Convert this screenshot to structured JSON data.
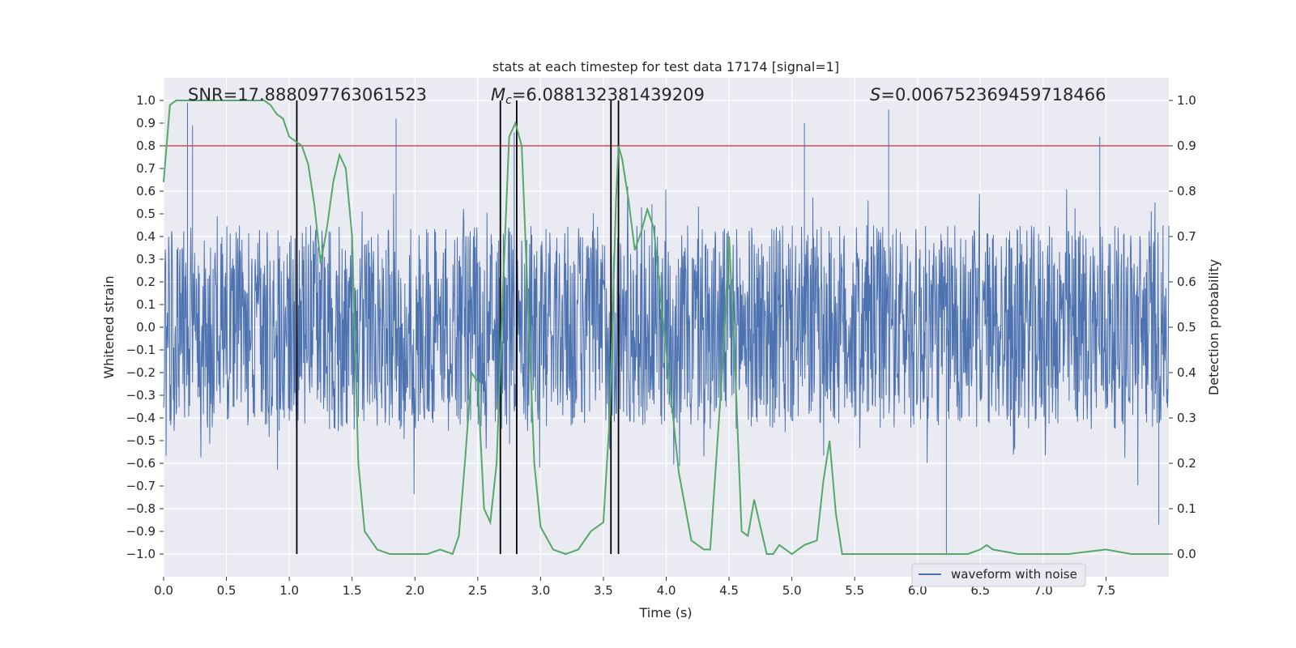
{
  "chart_data": {
    "type": "line",
    "title": "stats at each timestep for test data 17174 [signal=1]",
    "xlabel": "Time (s)",
    "ylabel_left": "Whitened strain",
    "ylabel_right": "Detection probability",
    "xlim": [
      0.0,
      8.0
    ],
    "ylim_left": [
      -1.1,
      1.1
    ],
    "ylim_right": [
      -0.05,
      1.05
    ],
    "x_ticks": [
      "0.0",
      "0.5",
      "1.0",
      "1.5",
      "2.0",
      "2.5",
      "3.0",
      "3.5",
      "4.0",
      "4.5",
      "5.0",
      "5.5",
      "6.0",
      "6.5",
      "7.0",
      "7.5"
    ],
    "y_left_ticks": [
      "1.0",
      "0.9",
      "0.8",
      "0.7",
      "0.6",
      "0.5",
      "0.4",
      "0.3",
      "0.2",
      "0.1",
      "0.0",
      "−0.1",
      "−0.2",
      "−0.3",
      "−0.4",
      "−0.5",
      "−0.6",
      "−0.7",
      "−0.8",
      "−0.9",
      "−1.0"
    ],
    "y_right_ticks": [
      "1.0",
      "0.9",
      "0.8",
      "0.7",
      "0.6",
      "0.5",
      "0.4",
      "0.3",
      "0.2",
      "0.1",
      "0.0"
    ],
    "grid": true,
    "annotations": {
      "snr": "SNR=17.888097763061523",
      "mc_symbol": "M",
      "mc_sub": "c",
      "mc_value": "=6.088132381439209",
      "s_symbol": "S",
      "s_value": "=0.006752369459718466"
    },
    "threshold_prob": 0.9,
    "vertical_lines_time": [
      1.06,
      2.68,
      2.81,
      3.56,
      3.62
    ],
    "series": [
      {
        "name": "waveform with noise",
        "axis": "left",
        "style": "noise-waveform",
        "envelope_typical": 0.45,
        "envelope_max": 1.0,
        "peak_times": [
          0.19,
          0.23,
          1.85,
          2.79,
          3.62,
          5.1,
          5.77,
          6.23,
          7.45,
          7.92
        ],
        "peak_values": [
          0.99,
          0.89,
          0.92,
          0.86,
          0.85,
          0.9,
          0.96,
          -1.0,
          0.84,
          -0.87
        ]
      },
      {
        "name": "detection probability",
        "axis": "right",
        "x": [
          0.0,
          0.05,
          0.1,
          0.15,
          0.2,
          0.3,
          0.4,
          0.5,
          0.6,
          0.7,
          0.8,
          0.85,
          0.9,
          0.95,
          1.0,
          1.1,
          1.15,
          1.2,
          1.25,
          1.3,
          1.35,
          1.4,
          1.45,
          1.5,
          1.55,
          1.6,
          1.7,
          1.8,
          1.9,
          2.0,
          2.1,
          2.2,
          2.3,
          2.35,
          2.4,
          2.45,
          2.5,
          2.55,
          2.6,
          2.65,
          2.7,
          2.75,
          2.8,
          2.85,
          2.9,
          2.95,
          3.0,
          3.1,
          3.2,
          3.3,
          3.4,
          3.5,
          3.55,
          3.6,
          3.62,
          3.65,
          3.7,
          3.75,
          3.8,
          3.85,
          3.9,
          3.95,
          4.0,
          4.1,
          4.2,
          4.25,
          4.3,
          4.35,
          4.45,
          4.5,
          4.55,
          4.6,
          4.65,
          4.7,
          4.75,
          4.8,
          4.85,
          4.9,
          4.95,
          5.0,
          5.1,
          5.2,
          5.25,
          5.3,
          5.35,
          5.4,
          5.45,
          5.5,
          5.7,
          6.0,
          6.2,
          6.4,
          6.5,
          6.55,
          6.6,
          6.8,
          7.0,
          7.2,
          7.5,
          7.7,
          8.0
        ],
        "values": [
          0.82,
          0.99,
          1.0,
          1.0,
          1.0,
          1.0,
          1.0,
          1.0,
          1.0,
          1.0,
          1.0,
          0.99,
          0.97,
          0.96,
          0.92,
          0.9,
          0.86,
          0.77,
          0.64,
          0.72,
          0.82,
          0.88,
          0.85,
          0.7,
          0.2,
          0.05,
          0.01,
          0.0,
          0.0,
          0.0,
          0.0,
          0.01,
          0.0,
          0.04,
          0.21,
          0.4,
          0.38,
          0.1,
          0.07,
          0.2,
          0.58,
          0.92,
          0.95,
          0.9,
          0.55,
          0.2,
          0.06,
          0.01,
          0.0,
          0.01,
          0.05,
          0.07,
          0.3,
          0.78,
          0.9,
          0.87,
          0.78,
          0.67,
          0.71,
          0.76,
          0.72,
          0.58,
          0.45,
          0.18,
          0.03,
          0.02,
          0.01,
          0.01,
          0.42,
          0.7,
          0.4,
          0.05,
          0.04,
          0.12,
          0.06,
          0.0,
          0.0,
          0.02,
          0.01,
          0.0,
          0.02,
          0.03,
          0.16,
          0.25,
          0.09,
          0.0,
          0.0,
          0.0,
          0.0,
          0.0,
          0.0,
          0.0,
          0.01,
          0.02,
          0.01,
          0.0,
          0.0,
          0.0,
          0.01,
          0.0,
          0.0
        ]
      }
    ],
    "legend": {
      "placement": "lower-right",
      "label": "waveform with noise"
    }
  },
  "colors": {
    "plot_bg": "#eaeaf2",
    "grid": "#ffffff",
    "waveform": "#4c72b0",
    "probability": "#55a868",
    "threshold": "#c44e52",
    "vlines": "#000000"
  }
}
